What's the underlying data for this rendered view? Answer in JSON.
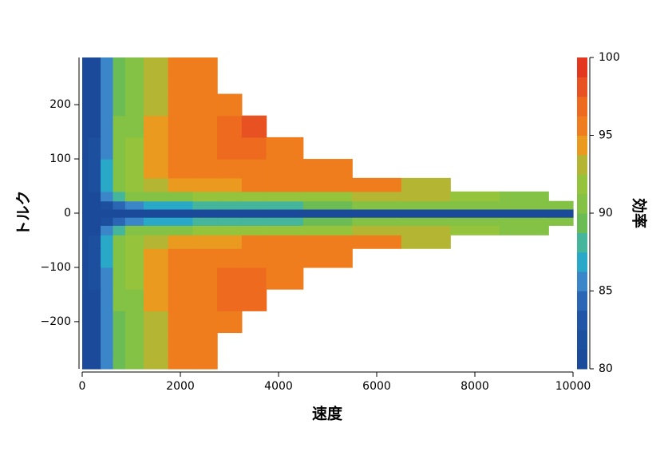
{
  "chart_data": {
    "type": "contour",
    "x_label": "速度",
    "y_label": "トルク",
    "colorbar_label": "効率",
    "x": [
      0,
      250,
      500,
      750,
      1000,
      1500,
      2000,
      2500,
      3000,
      3500,
      4000,
      5000,
      6000,
      7000,
      8000,
      9000,
      10000
    ],
    "y": [
      -280,
      -240,
      -200,
      -160,
      -120,
      -80,
      -50,
      -30,
      -15,
      0,
      15,
      30,
      50,
      80,
      120,
      160,
      200,
      240,
      280
    ],
    "z": [
      [
        80,
        81,
        85,
        89,
        91,
        93,
        95,
        96,
        null,
        null,
        null,
        null,
        null,
        null,
        null,
        null,
        null
      ],
      [
        80,
        81,
        85,
        89,
        91,
        93,
        95,
        96,
        null,
        null,
        null,
        null,
        null,
        null,
        null,
        null,
        null
      ],
      [
        80,
        81,
        86,
        89,
        91,
        93,
        95,
        96,
        96,
        null,
        null,
        null,
        null,
        null,
        null,
        null,
        null
      ],
      [
        80,
        81,
        86,
        90,
        91,
        94,
        96,
        96,
        97,
        97,
        null,
        null,
        null,
        null,
        null,
        null,
        null
      ],
      [
        80,
        82,
        86,
        90,
        92,
        94,
        96,
        96,
        97,
        97,
        96,
        null,
        null,
        null,
        null,
        null,
        null
      ],
      [
        80,
        82,
        87,
        90,
        92,
        94,
        96,
        96,
        96,
        96,
        96,
        96,
        null,
        null,
        null,
        null,
        null
      ],
      [
        80,
        82,
        87,
        90,
        92,
        93,
        94,
        94,
        94,
        95,
        95,
        95,
        95,
        93,
        null,
        null,
        null
      ],
      [
        80,
        81,
        85,
        88,
        90,
        91,
        91,
        92,
        92,
        92,
        92,
        92,
        93,
        93,
        92,
        91,
        null
      ],
      [
        80,
        80,
        82,
        84,
        86,
        87,
        87,
        88,
        88,
        88,
        88,
        89,
        90,
        90,
        90,
        90,
        90
      ],
      [
        80,
        80,
        80,
        80,
        80,
        81,
        81,
        81,
        81,
        81,
        81,
        81,
        81,
        81,
        81,
        81,
        81
      ],
      [
        80,
        80,
        82,
        84,
        86,
        87,
        87,
        88,
        88,
        88,
        88,
        89,
        90,
        90,
        90,
        90,
        90
      ],
      [
        80,
        81,
        85,
        88,
        90,
        91,
        91,
        92,
        92,
        92,
        92,
        92,
        93,
        93,
        92,
        91,
        null
      ],
      [
        80,
        82,
        87,
        90,
        92,
        93,
        94,
        94,
        94,
        95,
        95,
        95,
        95,
        93,
        null,
        null,
        null
      ],
      [
        80,
        82,
        87,
        90,
        92,
        94,
        96,
        96,
        96,
        96,
        96,
        96,
        null,
        null,
        null,
        null,
        null
      ],
      [
        80,
        82,
        86,
        90,
        92,
        94,
        96,
        96,
        97,
        97,
        96,
        null,
        null,
        null,
        null,
        null,
        null
      ],
      [
        80,
        81,
        86,
        90,
        91,
        94,
        96,
        96,
        97,
        98,
        null,
        null,
        null,
        null,
        null,
        null,
        null
      ],
      [
        80,
        81,
        86,
        89,
        91,
        93,
        95,
        96,
        96,
        null,
        null,
        null,
        null,
        null,
        null,
        null,
        null
      ],
      [
        80,
        81,
        85,
        89,
        91,
        93,
        95,
        96,
        null,
        null,
        null,
        null,
        null,
        null,
        null,
        null,
        null
      ],
      [
        80,
        81,
        85,
        89,
        91,
        93,
        95,
        96,
        null,
        null,
        null,
        null,
        null,
        null,
        null,
        null,
        null
      ]
    ],
    "xlim": [
      0,
      10000
    ],
    "xticks": [
      0,
      2000,
      4000,
      6000,
      8000,
      10000
    ],
    "ylim": [
      -287,
      287
    ],
    "yticks": [
      {
        "value": -200,
        "label": "−200"
      },
      {
        "value": -100,
        "label": "−100"
      },
      0,
      100,
      200
    ],
    "clim": [
      80,
      100
    ],
    "cticks": [
      80,
      85,
      90,
      95,
      100
    ],
    "colorscale": [
      "#1b4a9a",
      "#1d4f9f",
      "#2155a6",
      "#2a66b3",
      "#3a86c8",
      "#2aa8c8",
      "#45b59b",
      "#6cbc55",
      "#83c244",
      "#95c43c",
      "#b4b633",
      "#e99a1f",
      "#ef7d1d",
      "#ee6a1f",
      "#e85222",
      "#e3381f"
    ]
  }
}
